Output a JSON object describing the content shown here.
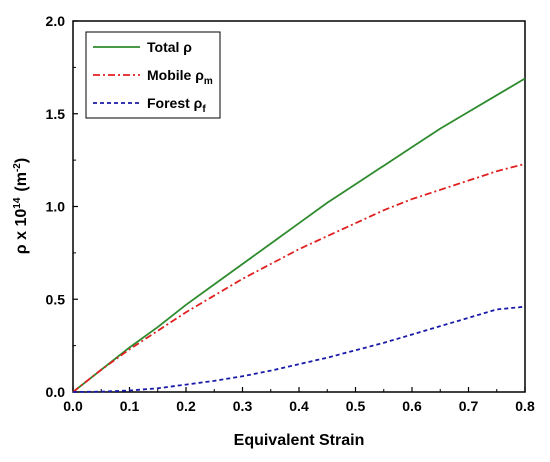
{
  "chart_data": {
    "type": "line",
    "title": "",
    "xlabel": "Equivalent Strain",
    "ylabel": {
      "base": "ρ x 10",
      "exp": "14",
      "unit_open": "(m",
      "unit_exp": "-2",
      "unit_close": ")"
    },
    "xlim": [
      0.0,
      0.8
    ],
    "ylim": [
      0.0,
      2.0
    ],
    "x_ticks": [
      "0.0",
      "0.1",
      "0.2",
      "0.3",
      "0.4",
      "0.5",
      "0.6",
      "0.7",
      "0.8"
    ],
    "y_ticks": [
      "0.0",
      "0.5",
      "1.0",
      "1.5",
      "2.0"
    ],
    "grid": false,
    "legend_placement": "top-left",
    "x": [
      0.0,
      0.05,
      0.1,
      0.15,
      0.2,
      0.25,
      0.3,
      0.35,
      0.4,
      0.45,
      0.5,
      0.55,
      0.6,
      0.65,
      0.7,
      0.75,
      0.8
    ],
    "series": [
      {
        "legend": {
          "text": "Total ρ",
          "sub": ""
        },
        "color": "#2e8b2e",
        "style": "solid",
        "values": [
          0.0,
          0.12,
          0.24,
          0.35,
          0.47,
          0.58,
          0.69,
          0.8,
          0.91,
          1.02,
          1.12,
          1.22,
          1.32,
          1.42,
          1.51,
          1.6,
          1.69
        ]
      },
      {
        "legend": {
          "text": "Mobile ρ",
          "sub": "m"
        },
        "color": "#e02020",
        "style": "dashdot",
        "values": [
          0.0,
          0.12,
          0.23,
          0.33,
          0.43,
          0.52,
          0.61,
          0.69,
          0.77,
          0.84,
          0.91,
          0.98,
          1.04,
          1.09,
          1.14,
          1.19,
          1.23
        ]
      },
      {
        "legend": {
          "text": "Forest ρ",
          "sub": "f"
        },
        "color": "#1a1aa8",
        "style": "dashed",
        "values": [
          0.0,
          0.002,
          0.008,
          0.02,
          0.04,
          0.06,
          0.085,
          0.115,
          0.15,
          0.185,
          0.225,
          0.265,
          0.31,
          0.355,
          0.4,
          0.445,
          0.46
        ]
      }
    ]
  }
}
